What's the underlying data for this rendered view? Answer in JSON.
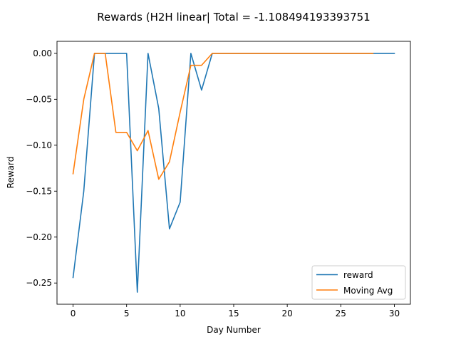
{
  "chart_data": {
    "type": "line",
    "title": "Rewards (H2H linear| Total = -1.108494193393751",
    "xlabel": "Day Number",
    "ylabel": "Reward",
    "xlim": [
      -1.5,
      31.5
    ],
    "ylim": [
      -0.2731,
      0.0131
    ],
    "xticks": [
      0,
      5,
      10,
      15,
      20,
      25,
      30
    ],
    "yticks": [
      0.0,
      -0.05,
      -0.1,
      -0.15,
      -0.2,
      -0.25
    ],
    "ytick_labels": [
      "0.00",
      "−0.05",
      "−0.10",
      "−0.15",
      "−0.20",
      "−0.25"
    ],
    "legend_position": "lower right",
    "series": [
      {
        "name": "reward",
        "color": "#1f77b4",
        "x": [
          0,
          1,
          2,
          3,
          4,
          5,
          6,
          7,
          8,
          9,
          10,
          11,
          12,
          13,
          14,
          15,
          16,
          17,
          18,
          19,
          20,
          21,
          22,
          23,
          24,
          25,
          26,
          27,
          28,
          29,
          30
        ],
        "y": [
          -0.244,
          -0.15,
          0.0,
          0.0,
          0.0,
          0.0,
          -0.26,
          0.0,
          -0.06,
          -0.191,
          -0.162,
          0.0,
          -0.04,
          0.0,
          0.0,
          0.0,
          0.0,
          0.0,
          0.0,
          0.0,
          0.0,
          0.0,
          0.0,
          0.0,
          0.0,
          0.0,
          0.0,
          0.0,
          0.0,
          0.0,
          0.0
        ]
      },
      {
        "name": "Moving Avg",
        "color": "#ff7f0e",
        "x": [
          0,
          1,
          2,
          3,
          4,
          5,
          6,
          7,
          8,
          9,
          10,
          11,
          12,
          13,
          14,
          15,
          16,
          17,
          18,
          19,
          20,
          21,
          22,
          23,
          24,
          25,
          26,
          27,
          28
        ],
        "y": [
          -0.131,
          -0.05,
          0.0,
          0.0,
          -0.086,
          -0.086,
          -0.106,
          -0.084,
          -0.137,
          -0.118,
          -0.064,
          -0.013,
          -0.013,
          0.0,
          0.0,
          0.0,
          0.0,
          0.0,
          0.0,
          0.0,
          0.0,
          0.0,
          0.0,
          0.0,
          0.0,
          0.0,
          0.0,
          0.0,
          0.0
        ]
      }
    ]
  }
}
